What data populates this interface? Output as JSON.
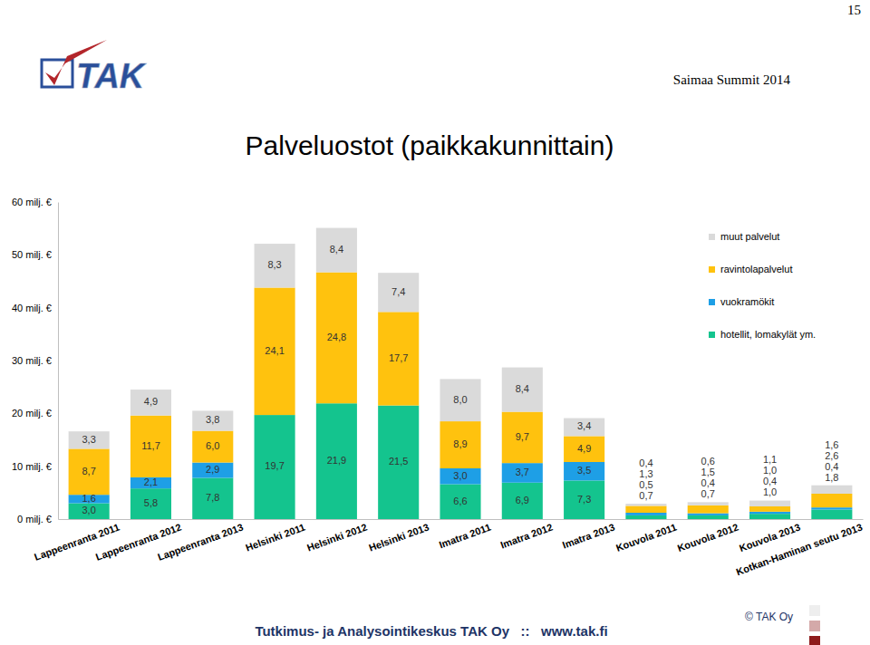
{
  "page": {
    "number": "15",
    "logo": "TAK",
    "event": "Saimaa Summit 2014",
    "footer": "Tutkimus- ja Analysointikeskus TAK Oy   ::   www.tak.fi",
    "copyright": "© TAK Oy"
  },
  "chart_data": {
    "type": "bar",
    "title": "Palveluostot (paikkakunnittain)",
    "stacked": true,
    "data_labels": true,
    "grid": false,
    "legend": "top-right",
    "categories": [
      "Lappeenranta 2011",
      "Lappeenranta 2012",
      "Lappeenranta 2013",
      "Helsinki 2011",
      "Helsinki 2012",
      "Helsinki 2013",
      "Imatra 2011",
      "Imatra 2012",
      "Imatra 2013",
      "Kouvola 2011",
      "Kouvola 2012",
      "Kouvola 2013",
      "Kotkan-Haminan seutu 2013"
    ],
    "ylim": [
      0,
      60
    ],
    "yticks": [
      {
        "value": 0,
        "label": "0 milj. €"
      },
      {
        "value": 10,
        "label": "10 milj. €"
      },
      {
        "value": 20,
        "label": "20 milj. €"
      },
      {
        "value": 30,
        "label": "30 milj. €"
      },
      {
        "value": 40,
        "label": "40 milj. €"
      },
      {
        "value": 50,
        "label": "50 milj. €"
      },
      {
        "value": 60,
        "label": "60 milj. €"
      }
    ],
    "series": [
      {
        "name": "hotellit, lomakylät ym.",
        "color": "#14C48E",
        "values": [
          3.0,
          5.8,
          7.8,
          19.7,
          21.9,
          21.5,
          6.6,
          6.9,
          7.3,
          0.7,
          0.7,
          1.0,
          1.8
        ],
        "value_labels": [
          "3,0",
          "5,8",
          "7,8",
          "19,7",
          "21,9",
          "21,5",
          "6,6",
          "6,9",
          "7,3",
          "0,7",
          "0,7",
          "1,0",
          "1,8"
        ]
      },
      {
        "name": "vuokramökit",
        "color": "#1E9FE6",
        "values": [
          1.6,
          2.1,
          2.9,
          null,
          null,
          null,
          3.0,
          3.7,
          3.5,
          0.5,
          0.4,
          0.4,
          0.4
        ],
        "value_labels": [
          "1,6",
          "2,1",
          "2,9",
          null,
          null,
          null,
          "3,0",
          "3,7",
          "3,5",
          "0,5",
          "0,4",
          "0,4",
          "0,4"
        ]
      },
      {
        "name": "ravintolapalvelut",
        "color": "#FFC20E",
        "values": [
          8.7,
          11.7,
          6.0,
          24.1,
          24.8,
          17.7,
          8.9,
          9.7,
          4.9,
          1.3,
          1.5,
          1.0,
          2.6
        ],
        "value_labels": [
          "8,7",
          "11,7",
          "6,0",
          "24,1",
          "24,8",
          "17,7",
          "8,9",
          "9,7",
          "4,9",
          "1,3",
          "1,5",
          "1,0",
          "2,6"
        ]
      },
      {
        "name": "muut palvelut",
        "color": "#DADADA",
        "values": [
          3.3,
          4.9,
          3.8,
          8.3,
          8.4,
          7.4,
          8.0,
          8.4,
          3.4,
          0.4,
          0.6,
          1.1,
          1.6
        ],
        "value_labels": [
          "3,3",
          "4,9",
          "3,8",
          "8,3",
          "8,4",
          "7,4",
          "8,0",
          "8,4",
          "3,4",
          "0,4",
          "0,6",
          "1,1",
          "1,6"
        ]
      }
    ]
  }
}
